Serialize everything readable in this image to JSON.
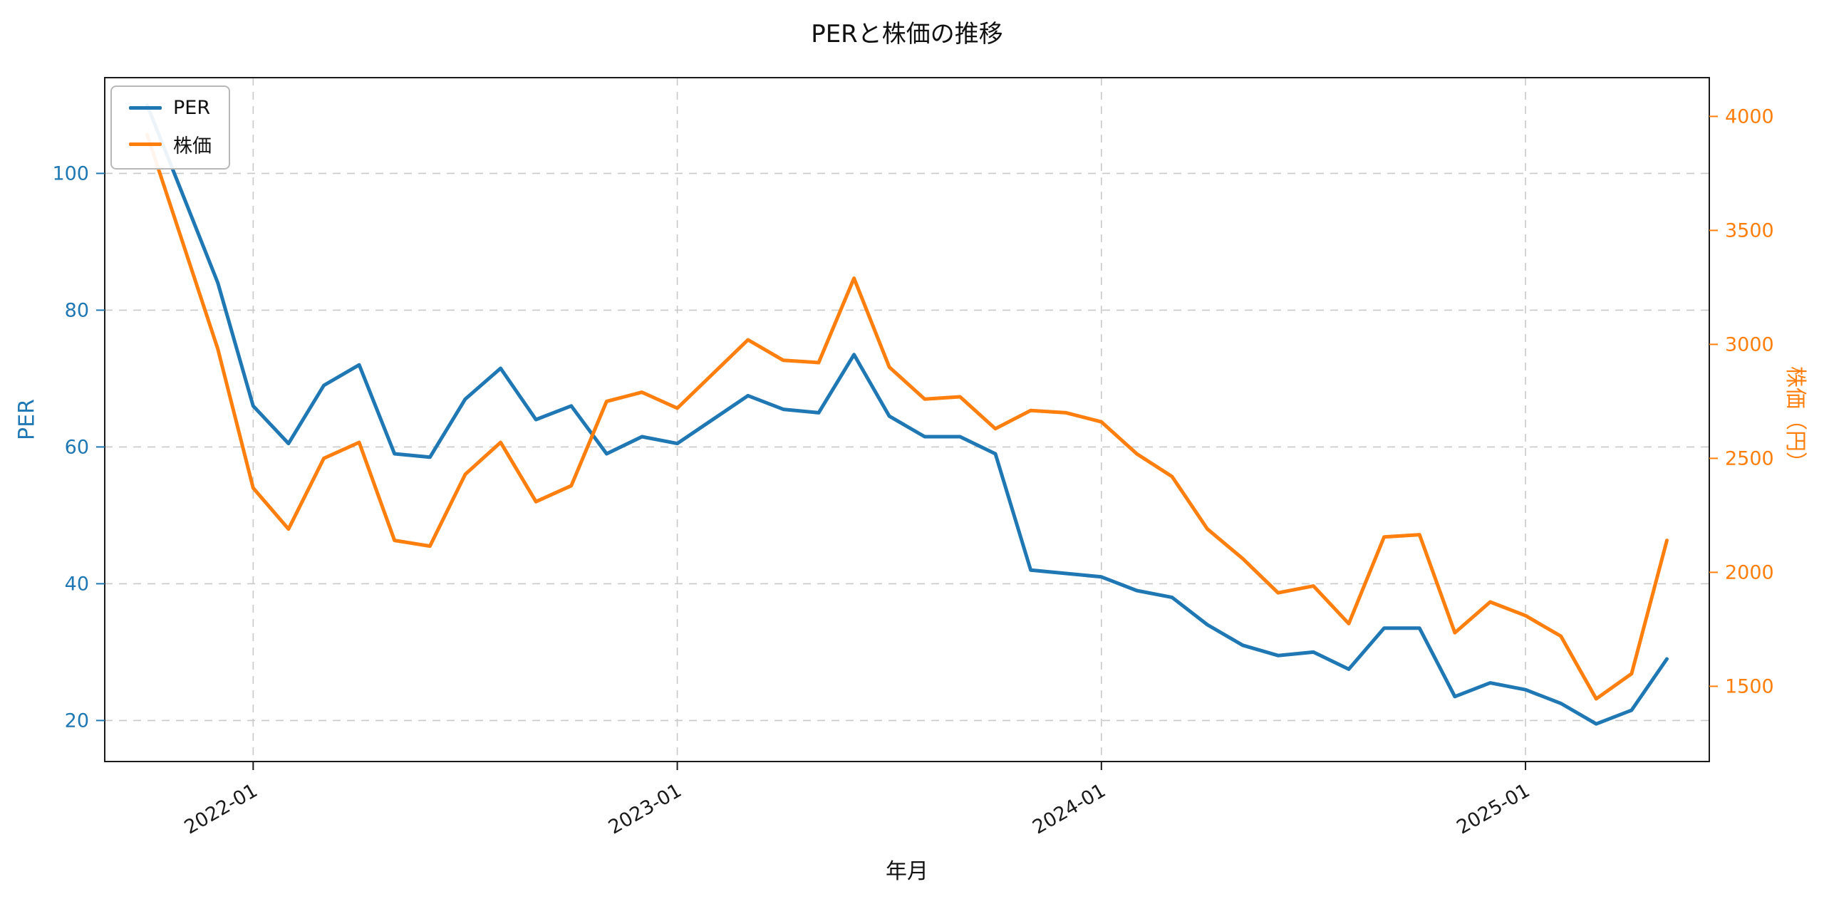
{
  "chart_data": {
    "type": "line",
    "title": "PERと株価の推移",
    "xlabel": "年月",
    "ylabel_left": "PER",
    "ylabel_right": "株価（円）",
    "grid": true,
    "legend_position": "upper-left",
    "x_months": [
      "2021-10",
      "2021-11",
      "2021-12",
      "2022-01",
      "2022-02",
      "2022-03",
      "2022-04",
      "2022-05",
      "2022-06",
      "2022-07",
      "2022-08",
      "2022-09",
      "2022-10",
      "2022-11",
      "2022-12",
      "2023-01",
      "2023-02",
      "2023-03",
      "2023-04",
      "2023-05",
      "2023-06",
      "2023-07",
      "2023-08",
      "2023-09",
      "2023-10",
      "2023-11",
      "2023-12",
      "2024-01",
      "2024-02",
      "2024-03",
      "2024-04",
      "2024-05",
      "2024-06",
      "2024-07",
      "2024-08",
      "2024-09",
      "2024-10",
      "2024-11",
      "2024-12",
      "2025-01",
      "2025-02",
      "2025-03",
      "2025-04",
      "2025-05"
    ],
    "x_tick_labels": [
      "2022-01",
      "2023-01",
      "2024-01",
      "2025-01"
    ],
    "x_tick_indices": [
      3,
      15,
      27,
      39
    ],
    "series": [
      {
        "name": "PER",
        "axis": "left",
        "color": "#1f77b4",
        "values": [
          110,
          97,
          84,
          66,
          60.5,
          69,
          72,
          59,
          58.5,
          67,
          71.5,
          64,
          66,
          59,
          61.5,
          60.5,
          64,
          67.5,
          65.5,
          65,
          73.5,
          64.5,
          61.5,
          61.5,
          59,
          42,
          41.5,
          41,
          39,
          38,
          34,
          31,
          29.5,
          30,
          27.5,
          33.5,
          33.5,
          23.5,
          25.5,
          24.5,
          22.5,
          19.5,
          21.5,
          29
        ]
      },
      {
        "name": "株価",
        "axis": "right",
        "color": "#ff7f0e",
        "values": [
          3920,
          3450,
          2980,
          2370,
          2190,
          2500,
          2570,
          2140,
          2115,
          2430,
          2570,
          2310,
          2380,
          2750,
          2790,
          2720,
          2870,
          3020,
          2930,
          2920,
          3290,
          2900,
          2760,
          2770,
          2630,
          2710,
          2700,
          2660,
          2520,
          2420,
          2190,
          2060,
          1910,
          1940,
          1775,
          2155,
          2165,
          1735,
          1870,
          1810,
          1720,
          1445,
          1555,
          2140
        ]
      }
    ],
    "left_axis": {
      "min": 14,
      "max": 114,
      "ticks": [
        20,
        40,
        60,
        80,
        100
      ],
      "color": "#1f77b4"
    },
    "right_axis": {
      "min": 1170,
      "max": 4170,
      "ticks": [
        1500,
        2000,
        2500,
        3000,
        3500,
        4000
      ],
      "color": "#ff7f0e"
    },
    "grid_color": "#c9c9c9"
  }
}
